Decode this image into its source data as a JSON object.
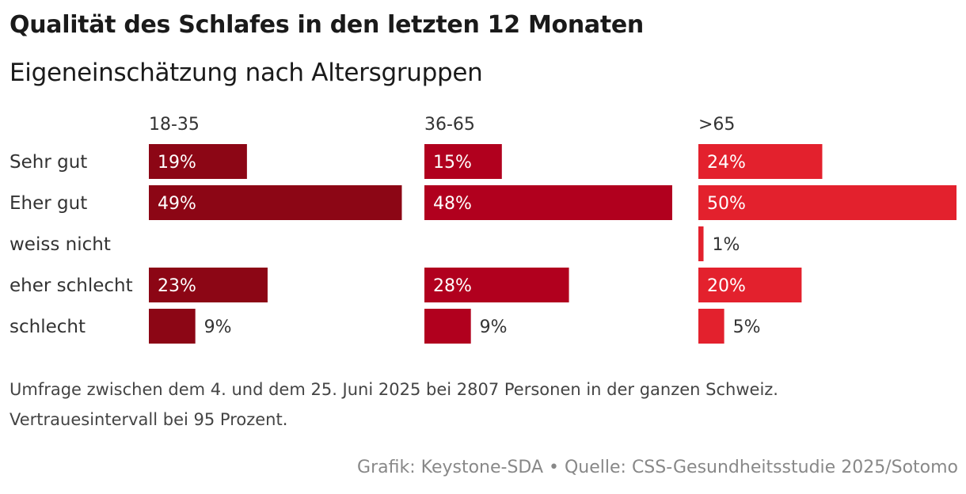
{
  "header": {
    "title": "Qualität des Schlafes in den letzten 12 Monaten",
    "subtitle": "Eigeneinschätzung nach Altersgruppen"
  },
  "chart_data": {
    "type": "bar",
    "title": "Qualität des Schlafes in den letzten 12 Monaten",
    "subtitle": "Eigeneinschätzung nach Altersgruppen",
    "categories": [
      "Sehr gut",
      "Eher gut",
      "weiss nicht",
      "eher schlecht",
      "schlecht"
    ],
    "unit": "%",
    "xlim": [
      0,
      50
    ],
    "series": [
      {
        "name": "18-35",
        "color": "#8c0615",
        "values": [
          19,
          49,
          null,
          23,
          9
        ]
      },
      {
        "name": "36-65",
        "color": "#b1001e",
        "values": [
          15,
          48,
          null,
          28,
          9
        ]
      },
      {
        "name": ">65",
        "color": "#e3212d",
        "values": [
          24,
          50,
          1,
          20,
          5
        ]
      }
    ]
  },
  "footer": {
    "note_line1": "Umfrage zwischen dem 4. und dem 25. Juni 2025 bei 2807 Personen in der ganzen Schweiz.",
    "note_line2": "Vertrauesintervall bei 95 Prozent.",
    "credit": "Grafik: Keystone-SDA • Quelle: CSS-Gesundheitsstudie 2025/Sotomo"
  }
}
